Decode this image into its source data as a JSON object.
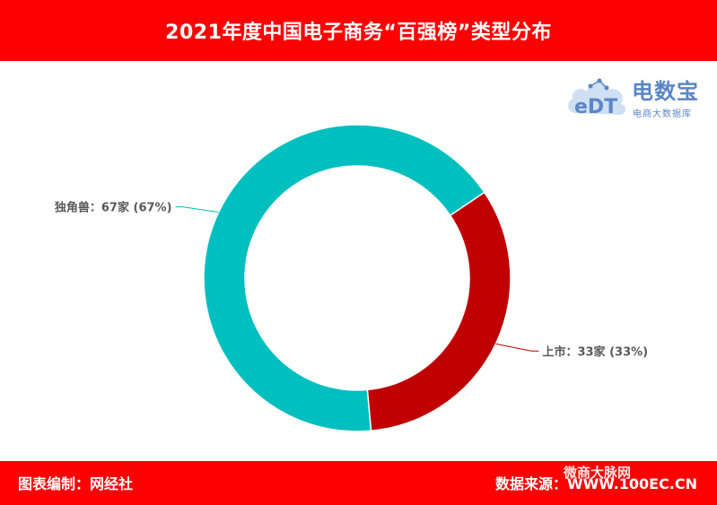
{
  "header": {
    "title": "2021年度中国电子商务“百强榜”类型分布"
  },
  "logo": {
    "brand": "电数宝",
    "tagline": "电商大数据库"
  },
  "footer": {
    "left": "图表编制：网经社",
    "right": "数据来源：WWW.100EC.CN",
    "watermark": "微商大脉网"
  },
  "colors": {
    "header_bg": "#ff0000",
    "unicorn": "#00bfbf",
    "listed": "#c00000"
  },
  "chart_data": {
    "type": "pie",
    "donut": true,
    "slices": [
      {
        "name": "上市",
        "value": 33,
        "percent": 33,
        "color": "#c00000",
        "label": "上市：33家 (33%)"
      },
      {
        "name": "独角兽",
        "value": 67,
        "percent": 67,
        "color": "#00bfbf",
        "label": "独角兽：67家 (67%)"
      }
    ]
  }
}
